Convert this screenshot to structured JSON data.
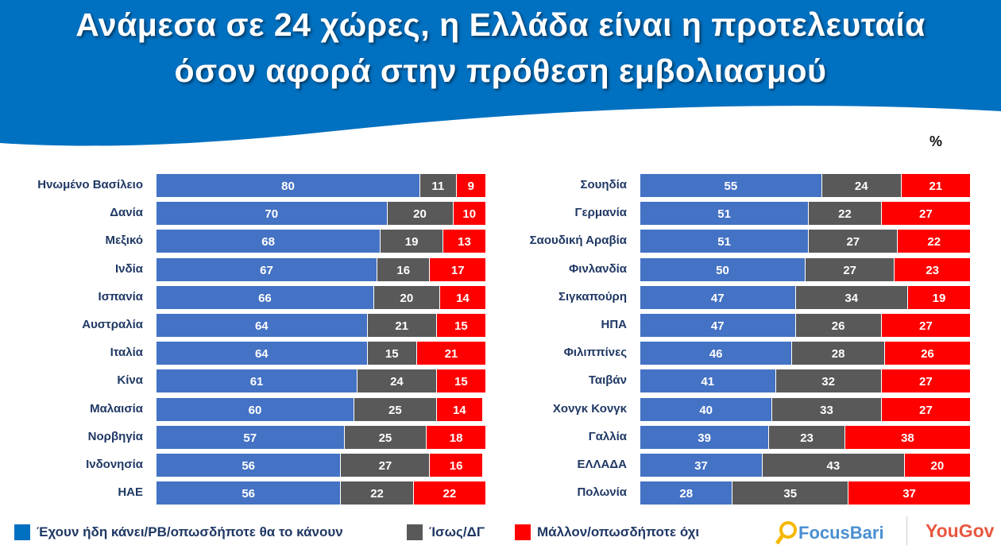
{
  "title_line1": "Ανάμεσα σε 24 χώρες, η Ελλάδα είναι η προτελευταία",
  "title_line2": "όσον αφορά στην πρόθεση εμβολιασμού",
  "unit": "%",
  "colors": {
    "header": "#0070c0",
    "yes": "#4472c4",
    "maybe": "#595959",
    "no": "#ff0000"
  },
  "chart_data": [
    {
      "type": "bar",
      "orientation": "horizontal",
      "stacked": true,
      "xlim": [
        0,
        100
      ],
      "categories": [
        "Ηνωμένο Βασίλειο",
        "Δανία",
        "Μεξικό",
        "Ινδία",
        "Ισπανία",
        "Αυστραλία",
        "Ιταλία",
        "Κίνα",
        "Μαλαισία",
        "Νορβηγία",
        "Ινδονησία",
        "ΗΑΕ"
      ],
      "series": [
        {
          "name": "Έχουν ήδη κάνει/PB/οπωσδήποτε θα το κάνουν",
          "values": [
            80,
            70,
            68,
            67,
            66,
            64,
            64,
            61,
            60,
            57,
            56,
            56
          ]
        },
        {
          "name": "Ίσως/ΔΓ",
          "values": [
            11,
            20,
            19,
            16,
            20,
            21,
            15,
            24,
            25,
            25,
            27,
            22
          ]
        },
        {
          "name": "Μάλλον/οπωσδήποτε όχι",
          "values": [
            9,
            10,
            13,
            17,
            14,
            15,
            21,
            15,
            14,
            18,
            16,
            22
          ]
        }
      ]
    },
    {
      "type": "bar",
      "orientation": "horizontal",
      "stacked": true,
      "xlim": [
        0,
        100
      ],
      "categories": [
        "Σουηδία",
        "Γερμανία",
        "Σαουδική Αραβία",
        "Φινλανδία",
        "Σιγκαπούρη",
        "ΗΠΑ",
        "Φιλιππίνες",
        "Ταιβάν",
        "Χονγκ Κονγκ",
        "Γαλλία",
        "ΕΛΛΑΔΑ",
        "Πολωνία"
      ],
      "series": [
        {
          "name": "Έχουν ήδη κάνει/PB/οπωσδήποτε θα το κάνουν",
          "values": [
            55,
            51,
            51,
            50,
            47,
            47,
            46,
            41,
            40,
            39,
            37,
            28
          ]
        },
        {
          "name": "Ίσως/ΔΓ",
          "values": [
            24,
            22,
            27,
            27,
            34,
            26,
            28,
            32,
            33,
            23,
            43,
            35
          ]
        },
        {
          "name": "Μάλλον/οπωσδήποτε όχι",
          "values": [
            21,
            27,
            22,
            23,
            19,
            27,
            26,
            27,
            27,
            38,
            20,
            37
          ]
        }
      ]
    }
  ],
  "legend": [
    "Έχουν ήδη κάνει/PB/οπωσδήποτε θα το κάνουν",
    "Ίσως/ΔΓ",
    "Μάλλον/οπωσδήποτε όχι"
  ],
  "logos": {
    "focusbari": "FocusBari",
    "yougov": "YouGov"
  }
}
